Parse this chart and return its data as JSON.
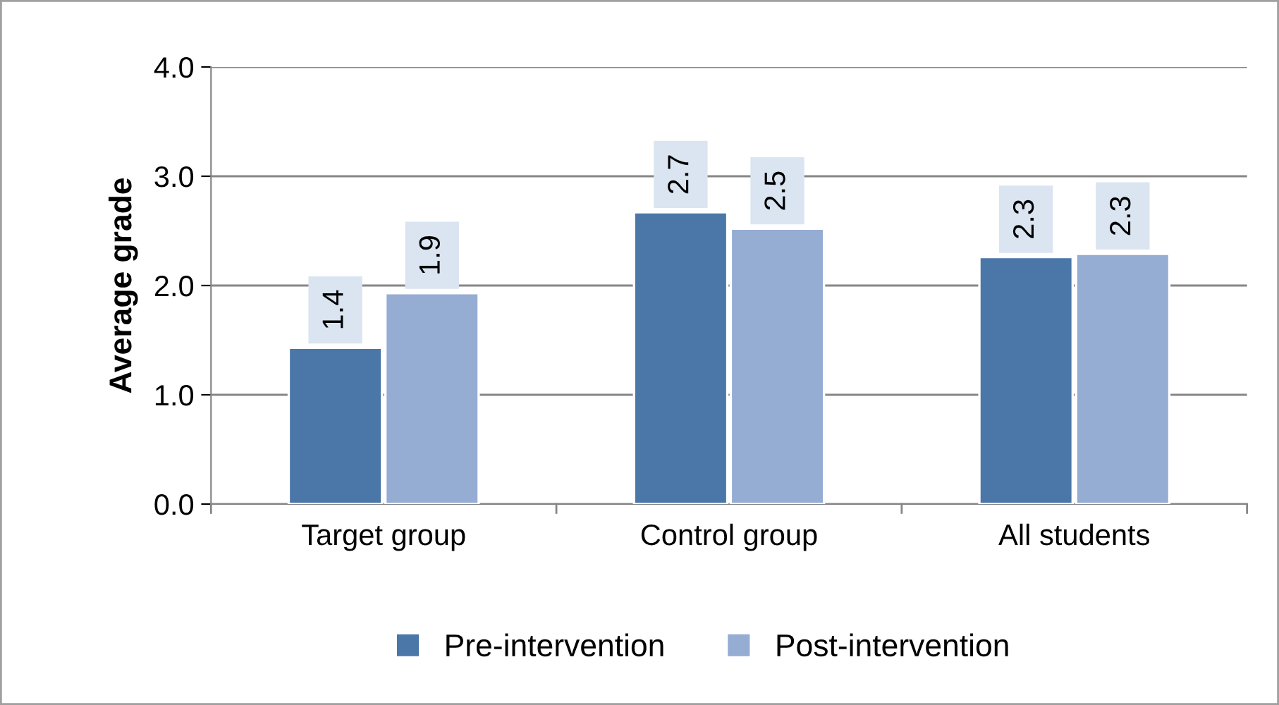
{
  "chart_data": {
    "type": "bar",
    "ylabel": "Average grade",
    "categories": [
      "Target group",
      "Control group",
      "All students"
    ],
    "series": [
      {
        "name": "Pre-intervention",
        "color": "#4a76a8",
        "values": [
          1.43,
          2.67,
          2.26
        ],
        "value_labels": [
          "1.4",
          "2.7",
          "2.3"
        ]
      },
      {
        "name": "Post-intervention",
        "color": "#95acd3",
        "values": [
          1.93,
          2.52,
          2.29
        ],
        "value_labels": [
          "1.9",
          "2.5",
          "2.3"
        ]
      }
    ],
    "ylim": [
      0,
      4
    ],
    "yticks": [
      {
        "value": 0,
        "label": "0.0"
      },
      {
        "value": 1,
        "label": "1.0"
      },
      {
        "value": 2,
        "label": "2.0"
      },
      {
        "value": 3,
        "label": "3.0"
      },
      {
        "value": 4,
        "label": "4.0"
      }
    ],
    "grid": "y",
    "legend": "bottom"
  }
}
